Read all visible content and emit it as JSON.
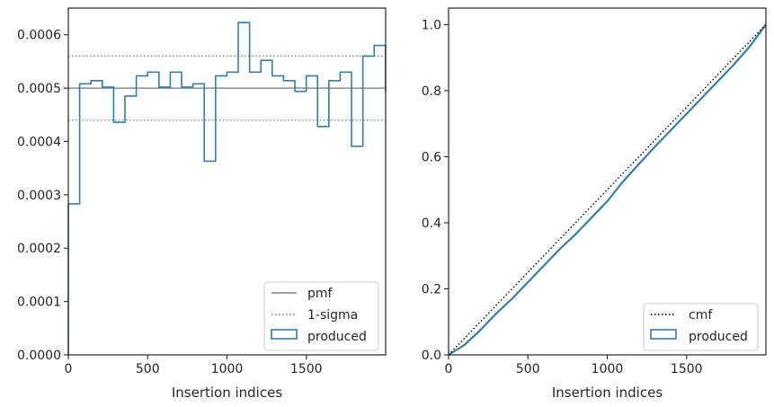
{
  "chart_data": [
    {
      "type": "step-histogram",
      "xlabel": "Insertion indices",
      "ylabel": "",
      "xlim": [
        0,
        2000
      ],
      "ylim": [
        0,
        0.00065
      ],
      "xticks": [
        0,
        500,
        1000,
        1500
      ],
      "xtick_labels": [
        "0",
        "500",
        "1000",
        "1500"
      ],
      "yticks": [
        0,
        0.0001,
        0.0002,
        0.0003,
        0.0004,
        0.0005,
        0.0006
      ],
      "ytick_labels": [
        "0.0000",
        "0.0001",
        "0.0002",
        "0.0003",
        "0.0004",
        "0.0005",
        "0.0006"
      ],
      "legend_position": "lower-right",
      "legend": [
        "pmf",
        "1-sigma",
        "produced"
      ],
      "reference_lines": [
        {
          "name": "pmf",
          "y": 0.0005,
          "style": "solid",
          "color": "#808080"
        },
        {
          "name": "1-sigma",
          "y": 0.00056,
          "style": "dotted",
          "color": "#808080"
        },
        {
          "name": "1-sigma",
          "y": 0.00044,
          "style": "dotted",
          "color": "#808080"
        }
      ],
      "series": [
        {
          "name": "produced",
          "color": "#2f7fb0",
          "bin_width": 71.4,
          "values": [
            0.000283,
            0.000508,
            0.000514,
            0.000502,
            0.000436,
            0.000485,
            0.000523,
            0.00053,
            0.000502,
            0.00053,
            0.000502,
            0.000508,
            0.000363,
            0.000523,
            0.00053,
            0.000623,
            0.00053,
            0.000552,
            0.000523,
            0.000514,
            0.000494,
            0.000523,
            0.000428,
            0.000514,
            0.00053,
            0.000391,
            0.00056,
            0.00058,
            0.000494
          ]
        }
      ]
    },
    {
      "type": "line",
      "xlabel": "Insertion indices",
      "ylabel": "",
      "xlim": [
        0,
        2000
      ],
      "ylim": [
        0,
        1.05
      ],
      "xticks": [
        0,
        500,
        1000,
        1500
      ],
      "xtick_labels": [
        "0",
        "500",
        "1000",
        "1500"
      ],
      "yticks": [
        0,
        0.2,
        0.4,
        0.6,
        0.8,
        1.0
      ],
      "ytick_labels": [
        "0.0",
        "0.2",
        "0.4",
        "0.6",
        "0.8",
        "1.0"
      ],
      "legend_position": "lower-right",
      "legend": [
        "cmf",
        "produced"
      ],
      "series": [
        {
          "name": "cmf",
          "style": "dotted",
          "color": "#000000",
          "x": [
            0,
            2000
          ],
          "y": [
            0,
            1.0
          ]
        },
        {
          "name": "produced",
          "style": "solid",
          "color": "#2f7fb0",
          "x": [
            0,
            100,
            200,
            300,
            400,
            500,
            600,
            700,
            800,
            900,
            1000,
            1100,
            1200,
            1300,
            1400,
            1500,
            1600,
            1700,
            1800,
            1900,
            2000
          ],
          "y": [
            0,
            0.03,
            0.075,
            0.125,
            0.17,
            0.22,
            0.27,
            0.32,
            0.365,
            0.415,
            0.465,
            0.525,
            0.578,
            0.63,
            0.68,
            0.73,
            0.78,
            0.83,
            0.88,
            0.935,
            1.0
          ]
        }
      ]
    }
  ]
}
